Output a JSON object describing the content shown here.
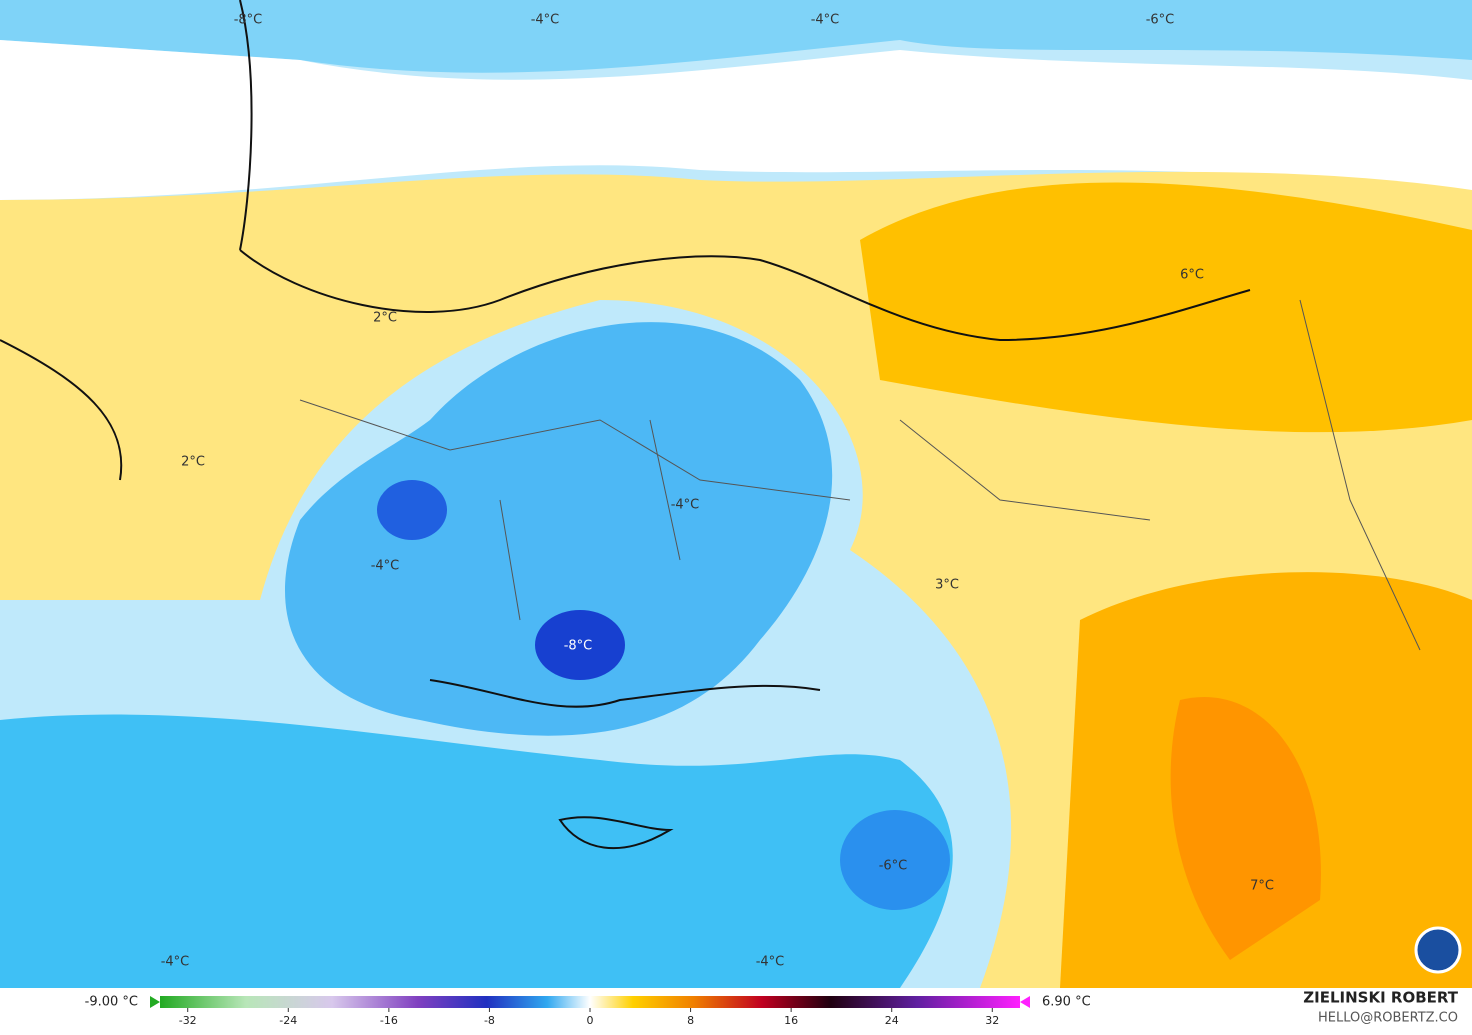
{
  "map": {
    "labels": [
      "-8°C",
      "-4°C",
      "-4°C",
      "-6°C",
      "2°C",
      "2°C",
      "6°C",
      "-4°C",
      "-4°C",
      "3°C",
      "-8°C",
      "-6°C",
      "7°C",
      "-4°C",
      "-4°C"
    ]
  },
  "legend": {
    "min": "-9.00 °C",
    "max": "6.90 °C",
    "clim": [
      -35,
      35
    ],
    "ticks": [
      -32,
      -24,
      -16,
      -8,
      0,
      8,
      16,
      24,
      32
    ]
  },
  "credit": {
    "name": "ZIELINSKI ROBERT",
    "email": "HELLO@ROBERTZ.CO"
  }
}
